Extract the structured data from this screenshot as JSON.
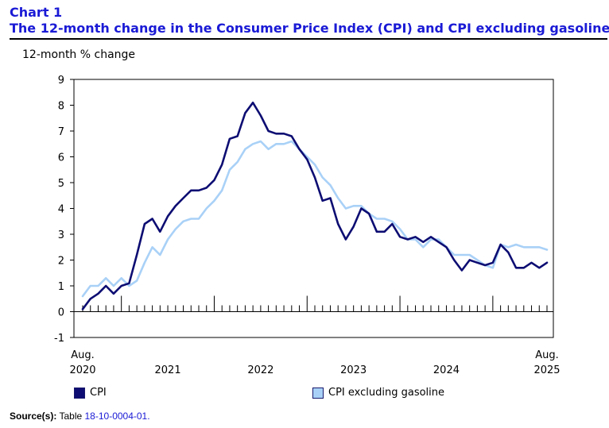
{
  "header": {
    "chart_number": "Chart 1",
    "title": "The 12-month change in the Consumer Price Index (CPI) and CPI excluding gasoline"
  },
  "source": {
    "label": "Source(s):",
    "text": "Table",
    "table_id": "18-10-0004-01."
  },
  "colors": {
    "cpi": "#0d0d73",
    "cpi_ex_gas": "#a9d1f7"
  },
  "chart_data": {
    "type": "line",
    "title": "The 12-month change in the Consumer Price Index (CPI) and CPI excluding gasoline",
    "ylabel": "12-month % change",
    "xlabel": "",
    "ylim": [
      -1,
      9
    ],
    "yticks": [
      -1,
      0,
      1,
      2,
      3,
      4,
      5,
      6,
      7,
      8,
      9
    ],
    "grid": false,
    "legend": "bottom",
    "x_start": "2020-08",
    "x_end": "2025-08",
    "x_tick_labels": [
      {
        "month": "2020-08",
        "line1": "Aug.",
        "line2": "2020"
      },
      {
        "month": "2021-07",
        "line1": "",
        "line2": "2021"
      },
      {
        "month": "2022-07",
        "line1": "",
        "line2": "2022"
      },
      {
        "month": "2023-07",
        "line1": "",
        "line2": "2023"
      },
      {
        "month": "2024-07",
        "line1": "",
        "line2": "2024"
      },
      {
        "month": "2025-08",
        "line1": "Aug.",
        "line2": "2025"
      }
    ],
    "x": [
      "2020-08",
      "2020-09",
      "2020-10",
      "2020-11",
      "2020-12",
      "2021-01",
      "2021-02",
      "2021-03",
      "2021-04",
      "2021-05",
      "2021-06",
      "2021-07",
      "2021-08",
      "2021-09",
      "2021-10",
      "2021-11",
      "2021-12",
      "2022-01",
      "2022-02",
      "2022-03",
      "2022-04",
      "2022-05",
      "2022-06",
      "2022-07",
      "2022-08",
      "2022-09",
      "2022-10",
      "2022-11",
      "2022-12",
      "2023-01",
      "2023-02",
      "2023-03",
      "2023-04",
      "2023-05",
      "2023-06",
      "2023-07",
      "2023-08",
      "2023-09",
      "2023-10",
      "2023-11",
      "2023-12",
      "2024-01",
      "2024-02",
      "2024-03",
      "2024-04",
      "2024-05",
      "2024-06",
      "2024-07",
      "2024-08",
      "2024-09",
      "2024-10",
      "2024-11",
      "2024-12",
      "2025-01",
      "2025-02",
      "2025-03",
      "2025-04",
      "2025-05",
      "2025-06",
      "2025-07",
      "2025-08"
    ],
    "series": [
      {
        "name": "CPI",
        "values": [
          0.1,
          0.5,
          0.7,
          1.0,
          0.7,
          1.0,
          1.1,
          2.2,
          3.4,
          3.6,
          3.1,
          3.7,
          4.1,
          4.4,
          4.7,
          4.7,
          4.8,
          5.1,
          5.7,
          6.7,
          6.8,
          7.7,
          8.1,
          7.6,
          7.0,
          6.9,
          6.9,
          6.8,
          6.3,
          5.9,
          5.2,
          4.3,
          4.4,
          3.4,
          2.8,
          3.3,
          4.0,
          3.8,
          3.1,
          3.1,
          3.4,
          2.9,
          2.8,
          2.9,
          2.7,
          2.9,
          2.7,
          2.5,
          2.0,
          1.6,
          2.0,
          1.9,
          1.8,
          1.9,
          2.6,
          2.3,
          1.7,
          1.7,
          1.9,
          1.7,
          1.9
        ]
      },
      {
        "name": "CPI excluding gasoline",
        "values": [
          0.6,
          1.0,
          1.0,
          1.3,
          1.0,
          1.3,
          1.0,
          1.2,
          1.9,
          2.5,
          2.2,
          2.8,
          3.2,
          3.5,
          3.6,
          3.6,
          4.0,
          4.3,
          4.7,
          5.5,
          5.8,
          6.3,
          6.5,
          6.6,
          6.3,
          6.5,
          6.5,
          6.6,
          6.3,
          6.0,
          5.7,
          5.2,
          4.9,
          4.4,
          4.0,
          4.1,
          4.1,
          3.8,
          3.6,
          3.6,
          3.5,
          3.2,
          2.8,
          2.8,
          2.5,
          2.8,
          2.8,
          2.5,
          2.2,
          2.2,
          2.2,
          2.0,
          1.8,
          1.7,
          2.6,
          2.5,
          2.6,
          2.5,
          2.5,
          2.5,
          2.4
        ]
      }
    ]
  }
}
